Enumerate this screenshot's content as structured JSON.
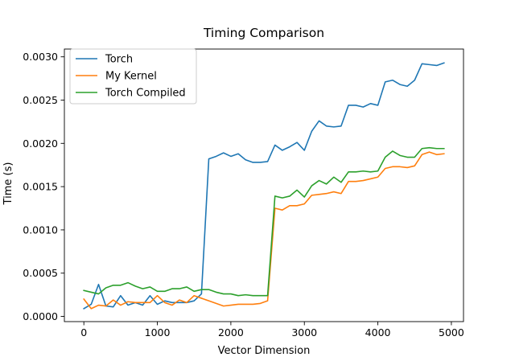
{
  "chart_data": {
    "type": "line",
    "title": "Timing Comparison",
    "xlabel": "Vector Dimension",
    "ylabel": "Time (s)",
    "xlim": [
      -265,
      5165
    ],
    "ylim": [
      -6e-05,
      0.00309
    ],
    "xticks": [
      0,
      1000,
      2000,
      3000,
      4000,
      5000
    ],
    "xtick_labels": [
      "0",
      "1000",
      "2000",
      "3000",
      "4000",
      "5000"
    ],
    "yticks": [
      0.0,
      0.0005,
      0.001,
      0.0015,
      0.002,
      0.0025,
      0.003
    ],
    "ytick_labels": [
      "0.0000",
      "0.0005",
      "0.0010",
      "0.0015",
      "0.0020",
      "0.0025",
      "0.0030"
    ],
    "grid": false,
    "legend_position": "top-left",
    "x": [
      0,
      100,
      200,
      300,
      400,
      500,
      600,
      700,
      800,
      900,
      1000,
      1100,
      1200,
      1300,
      1400,
      1500,
      1600,
      1700,
      1800,
      1900,
      2000,
      2100,
      2200,
      2300,
      2400,
      2500,
      2600,
      2700,
      2800,
      2900,
      3000,
      3100,
      3200,
      3300,
      3400,
      3500,
      3600,
      3700,
      3800,
      3900,
      4000,
      4100,
      4200,
      4300,
      4400,
      4500,
      4600,
      4700,
      4800,
      4900
    ],
    "series": [
      {
        "name": "Torch",
        "color": "#1f77b4",
        "values": [
          9e-05,
          0.00014,
          0.00037,
          0.00012,
          0.00011,
          0.00024,
          0.00013,
          0.00016,
          0.00013,
          0.00024,
          0.00014,
          0.00018,
          0.00016,
          0.00016,
          0.00016,
          0.00018,
          0.00026,
          0.00182,
          0.00185,
          0.00189,
          0.00185,
          0.00188,
          0.00181,
          0.00178,
          0.00178,
          0.00179,
          0.00198,
          0.00192,
          0.00196,
          0.00201,
          0.00192,
          0.00214,
          0.00226,
          0.0022,
          0.00219,
          0.0022,
          0.00244,
          0.00244,
          0.00242,
          0.00246,
          0.00244,
          0.00271,
          0.00273,
          0.00268,
          0.00266,
          0.00273,
          0.00292,
          0.00291,
          0.0029,
          0.00293
        ]
      },
      {
        "name": "My Kernel",
        "color": "#ff7f0e",
        "values": [
          0.0002,
          9e-05,
          0.00013,
          0.00012,
          0.00019,
          0.00013,
          0.00017,
          0.00016,
          0.00016,
          0.00016,
          0.00024,
          0.00016,
          0.00013,
          0.00019,
          0.00016,
          0.00024,
          0.00021,
          0.00018,
          0.00015,
          0.00012,
          0.00013,
          0.00014,
          0.00014,
          0.00014,
          0.00015,
          0.00018,
          0.00125,
          0.00123,
          0.00128,
          0.00128,
          0.0013,
          0.0014,
          0.00141,
          0.00142,
          0.00144,
          0.00142,
          0.00156,
          0.00156,
          0.00157,
          0.00159,
          0.00161,
          0.00171,
          0.00173,
          0.00173,
          0.00172,
          0.00174,
          0.00187,
          0.0019,
          0.00187,
          0.00188
        ]
      },
      {
        "name": "Torch Compiled",
        "color": "#2ca02c",
        "values": [
          0.0003,
          0.00028,
          0.00026,
          0.00033,
          0.00036,
          0.00036,
          0.00039,
          0.00035,
          0.00032,
          0.00034,
          0.00029,
          0.00029,
          0.00032,
          0.00032,
          0.00034,
          0.00029,
          0.00031,
          0.00031,
          0.00028,
          0.00026,
          0.00026,
          0.00024,
          0.00025,
          0.00024,
          0.00024,
          0.00024,
          0.00139,
          0.00137,
          0.00139,
          0.00146,
          0.00138,
          0.00151,
          0.00157,
          0.00153,
          0.00161,
          0.00155,
          0.00167,
          0.00167,
          0.00168,
          0.00167,
          0.00168,
          0.00184,
          0.00191,
          0.00186,
          0.00184,
          0.00184,
          0.00194,
          0.00195,
          0.00194,
          0.00194
        ]
      }
    ]
  }
}
